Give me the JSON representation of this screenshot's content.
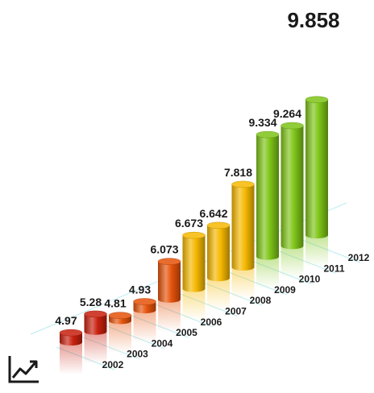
{
  "chart_data": {
    "type": "bar",
    "style": "3d-cylinder",
    "categories": [
      "2002",
      "2003",
      "2004",
      "2005",
      "2006",
      "2007",
      "2008",
      "2009",
      "2010",
      "2011",
      "2012"
    ],
    "values": [
      4.97,
      5.28,
      4.81,
      4.93,
      6.073,
      6.673,
      6.642,
      7.818,
      9.334,
      9.264,
      9.858
    ],
    "value_labels": [
      "4.97",
      "5.28",
      "4.81",
      "4.93",
      "6.073",
      "6.673",
      "6.642",
      "7.818",
      "9.334",
      "9.264",
      "9.858"
    ],
    "colors": [
      "#c8200e",
      "#c8200e",
      "#e5520a",
      "#e5520a",
      "#e5520a",
      "#f5b800",
      "#f5b800",
      "#f5b800",
      "#7dc417",
      "#7dc417",
      "#7dc417"
    ],
    "title": "",
    "xlabel": "",
    "ylabel": "",
    "grid": false,
    "legend": "none"
  },
  "icons": {
    "trend": "trend-up-icon"
  }
}
